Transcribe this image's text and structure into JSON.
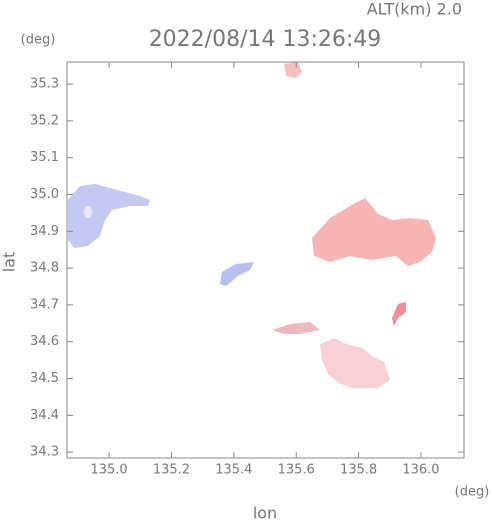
{
  "chart_data": {
    "type": "map",
    "title": "2022/08/14 13:26:49",
    "subtitle": "ALT(km) 2.0",
    "x_label": "lon",
    "y_label": "lat",
    "x_unit": "(deg)",
    "y_unit": "(deg)",
    "xlim": [
      134.865,
      136.138
    ],
    "ylim": [
      34.284,
      35.36
    ],
    "xticks": [
      {
        "value": 135.0,
        "label": "135.0"
      },
      135.2,
      135.4,
      135.6,
      135.8,
      {
        "value": 136.0,
        "label": "136.0"
      }
    ],
    "yticks": [
      34.3,
      34.4,
      34.5,
      34.6,
      34.7,
      34.8,
      34.9,
      {
        "value": 35.0,
        "label": "35.0"
      },
      35.1,
      35.2,
      35.3
    ]
  }
}
